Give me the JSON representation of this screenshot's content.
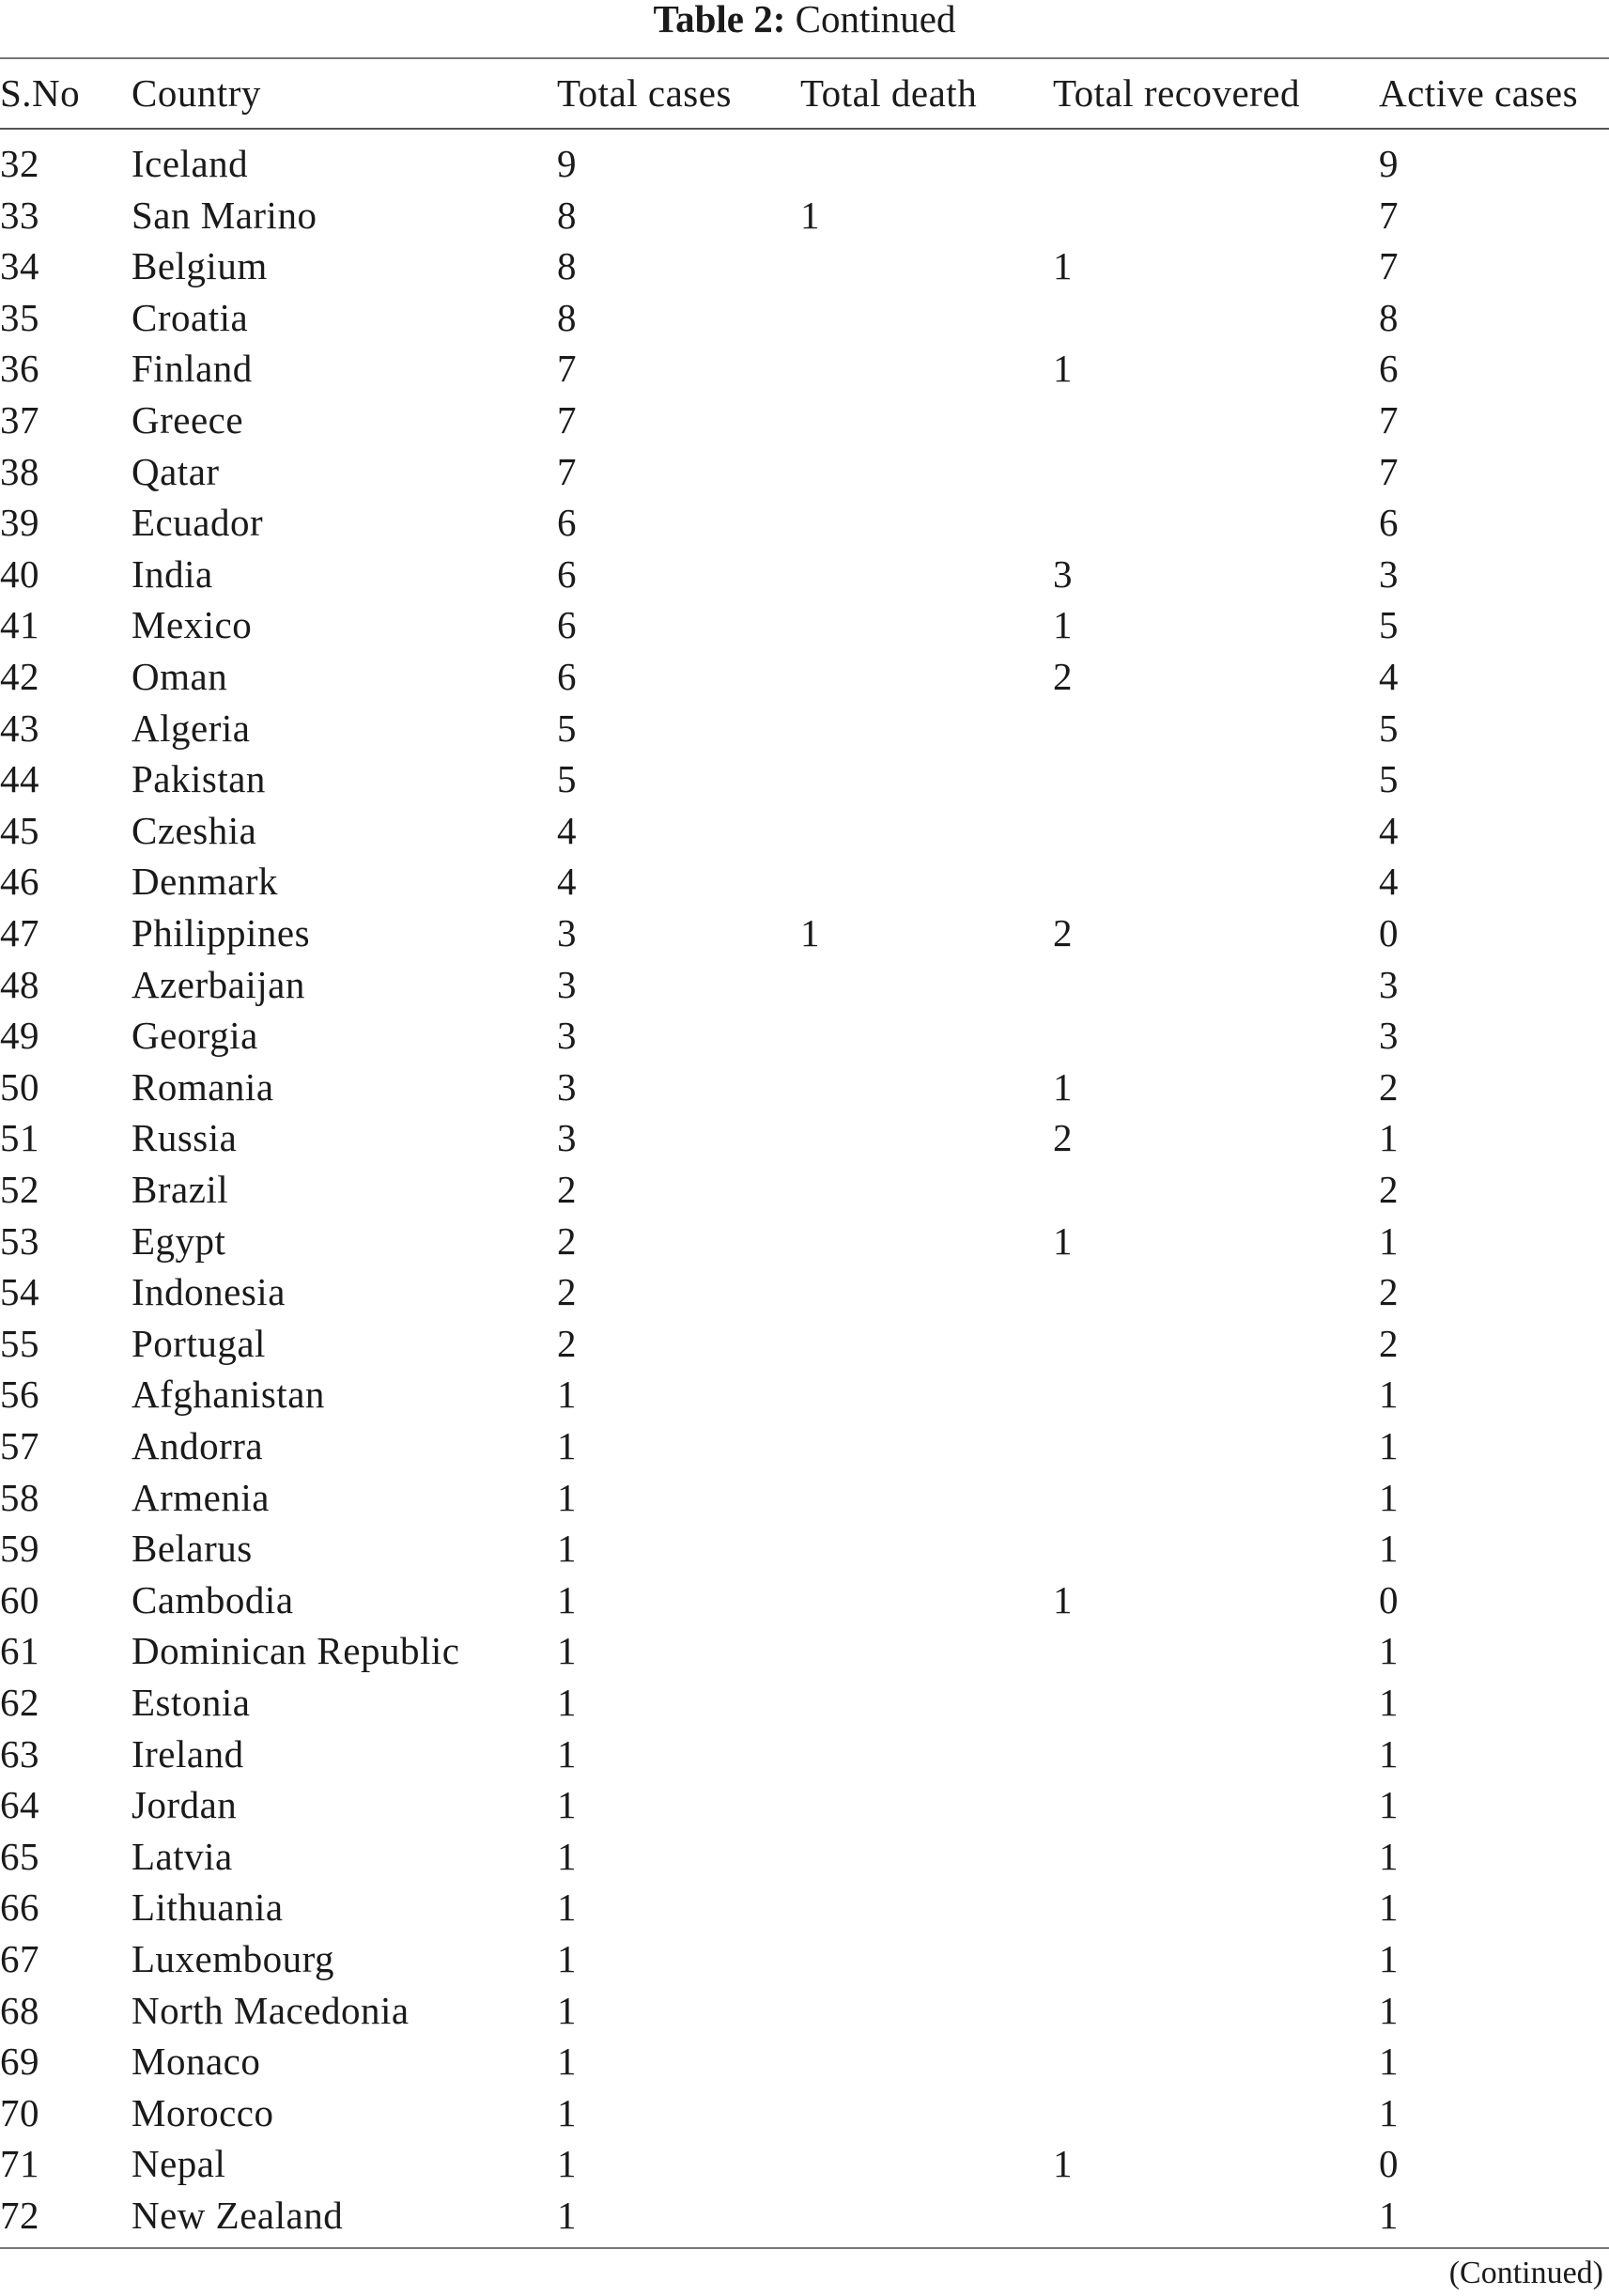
{
  "title": {
    "label": "Table 2:",
    "text": "Continued"
  },
  "columns": [
    "S.No",
    "Country",
    "Total cases",
    "Total death",
    "Total recovered",
    "Active cases"
  ],
  "rows": [
    [
      "32",
      "Iceland",
      "9",
      "",
      "",
      "9"
    ],
    [
      "33",
      "San Marino",
      "8",
      "1",
      "",
      "7"
    ],
    [
      "34",
      "Belgium",
      "8",
      "",
      "1",
      "7"
    ],
    [
      "35",
      "Croatia",
      "8",
      "",
      "",
      "8"
    ],
    [
      "36",
      "Finland",
      "7",
      "",
      "1",
      "6"
    ],
    [
      "37",
      "Greece",
      "7",
      "",
      "",
      "7"
    ],
    [
      "38",
      "Qatar",
      "7",
      "",
      "",
      "7"
    ],
    [
      "39",
      "Ecuador",
      "6",
      "",
      "",
      "6"
    ],
    [
      "40",
      "India",
      "6",
      "",
      "3",
      "3"
    ],
    [
      "41",
      "Mexico",
      "6",
      "",
      "1",
      "5"
    ],
    [
      "42",
      "Oman",
      "6",
      "",
      "2",
      "4"
    ],
    [
      "43",
      "Algeria",
      "5",
      "",
      "",
      "5"
    ],
    [
      "44",
      "Pakistan",
      "5",
      "",
      "",
      "5"
    ],
    [
      "45",
      "Czeshia",
      "4",
      "",
      "",
      "4"
    ],
    [
      "46",
      "Denmark",
      "4",
      "",
      "",
      "4"
    ],
    [
      "47",
      "Philippines",
      "3",
      "1",
      "2",
      "0"
    ],
    [
      "48",
      "Azerbaijan",
      "3",
      "",
      "",
      "3"
    ],
    [
      "49",
      "Georgia",
      "3",
      "",
      "",
      "3"
    ],
    [
      "50",
      "Romania",
      "3",
      "",
      "1",
      "2"
    ],
    [
      "51",
      "Russia",
      "3",
      "",
      "2",
      "1"
    ],
    [
      "52",
      "Brazil",
      "2",
      "",
      "",
      "2"
    ],
    [
      "53",
      "Egypt",
      "2",
      "",
      "1",
      "1"
    ],
    [
      "54",
      "Indonesia",
      "2",
      "",
      "",
      "2"
    ],
    [
      "55",
      "Portugal",
      "2",
      "",
      "",
      "2"
    ],
    [
      "56",
      "Afghanistan",
      "1",
      "",
      "",
      "1"
    ],
    [
      "57",
      "Andorra",
      "1",
      "",
      "",
      "1"
    ],
    [
      "58",
      "Armenia",
      "1",
      "",
      "",
      "1"
    ],
    [
      "59",
      "Belarus",
      "1",
      "",
      "",
      "1"
    ],
    [
      "60",
      "Cambodia",
      "1",
      "",
      "1",
      "0"
    ],
    [
      "61",
      "Dominican Republic",
      "1",
      "",
      "",
      "1"
    ],
    [
      "62",
      "Estonia",
      "1",
      "",
      "",
      "1"
    ],
    [
      "63",
      "Ireland",
      "1",
      "",
      "",
      "1"
    ],
    [
      "64",
      "Jordan",
      "1",
      "",
      "",
      "1"
    ],
    [
      "65",
      "Latvia",
      "1",
      "",
      "",
      "1"
    ],
    [
      "66",
      "Lithuania",
      "1",
      "",
      "",
      "1"
    ],
    [
      "67",
      "Luxembourg",
      "1",
      "",
      "",
      "1"
    ],
    [
      "68",
      "North Macedonia",
      "1",
      "",
      "",
      "1"
    ],
    [
      "69",
      "Monaco",
      "1",
      "",
      "",
      "1"
    ],
    [
      "70",
      "Morocco",
      "1",
      "",
      "",
      "1"
    ],
    [
      "71",
      "Nepal",
      "1",
      "",
      "1",
      "0"
    ],
    [
      "72",
      "New Zealand",
      "1",
      "",
      "",
      "1"
    ]
  ],
  "footer": "(Continued)"
}
